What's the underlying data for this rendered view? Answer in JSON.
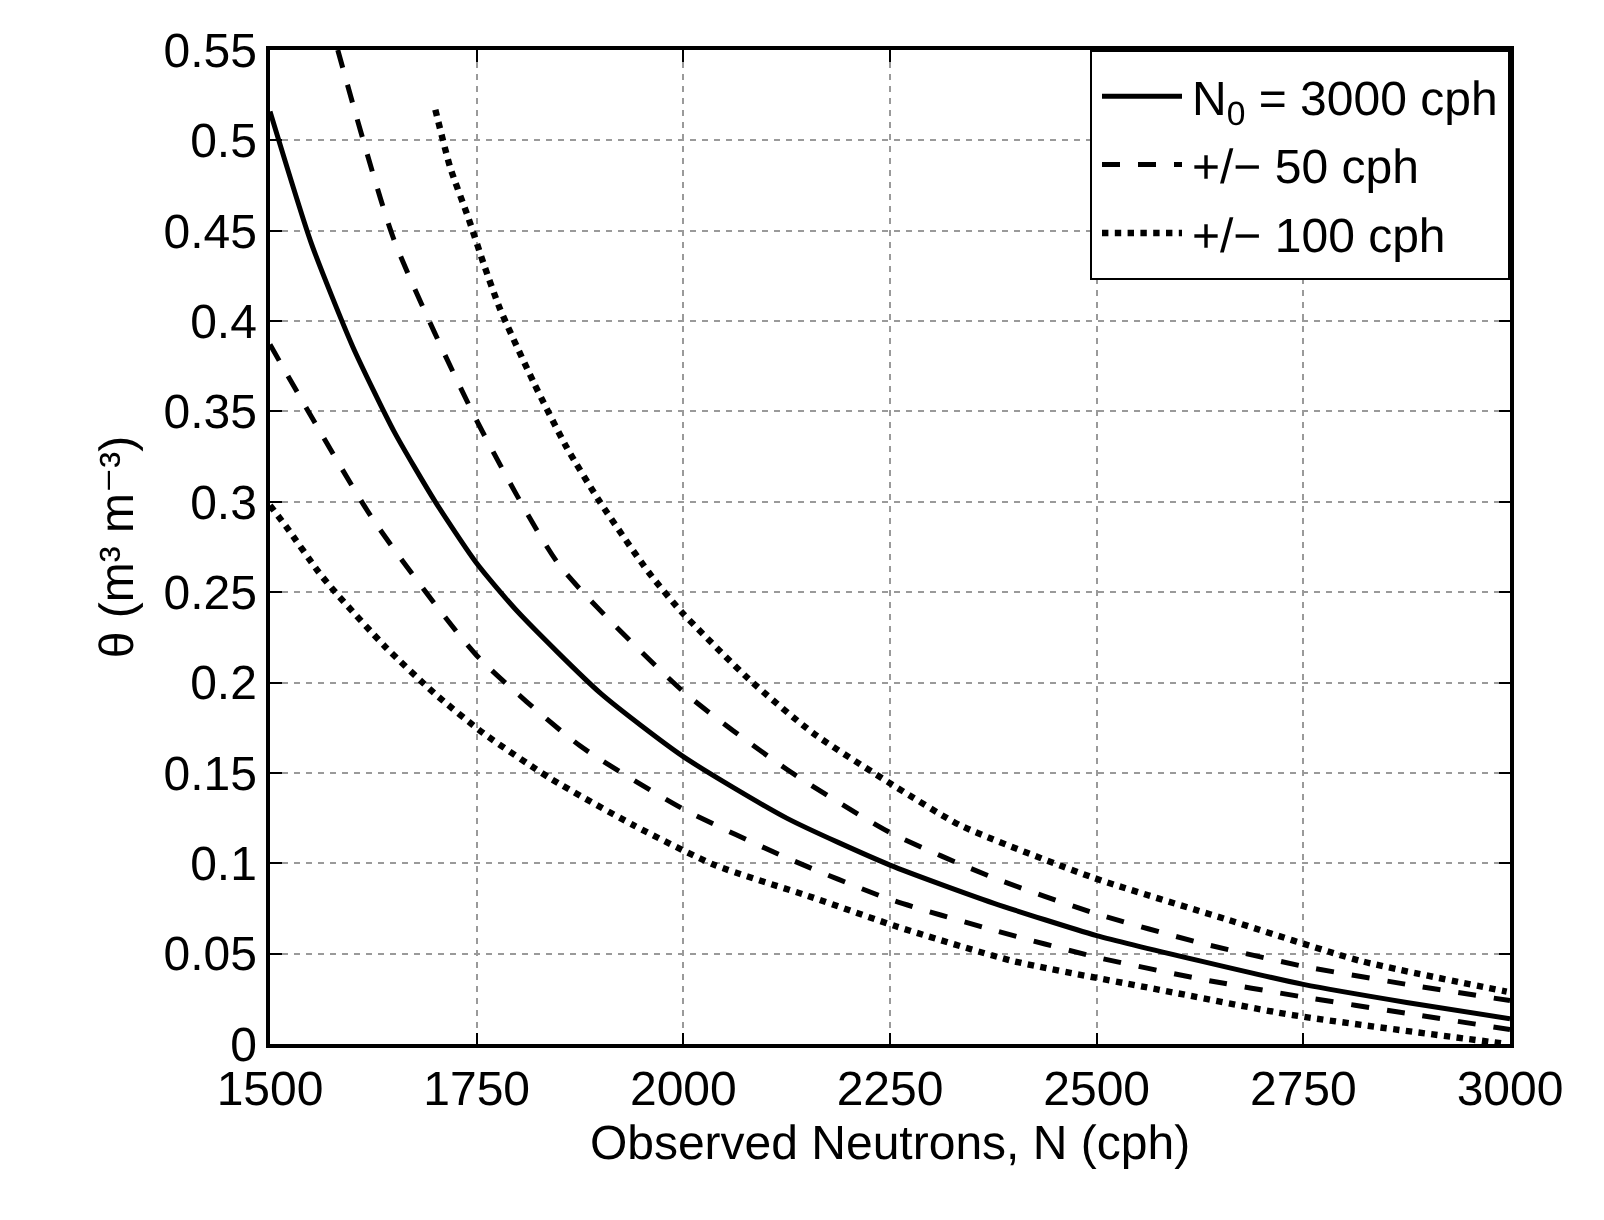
{
  "chart_data": {
    "type": "line",
    "xlabel": "Observed Neutrons, N (cph)",
    "ylabel": "θ (m³ m⁻³)",
    "xlim": [
      1500,
      3000
    ],
    "xticks": [
      1500,
      1750,
      2000,
      2250,
      2500,
      2750,
      3000
    ],
    "ylim": [
      0,
      0.55
    ],
    "yticks": [
      {
        "value": 0,
        "label": "0"
      },
      0.05,
      {
        "value": 0.1,
        "label": "0.1"
      },
      0.15,
      {
        "value": 0.2,
        "label": "0.2"
      },
      0.25,
      {
        "value": 0.3,
        "label": "0.3"
      },
      0.35,
      {
        "value": 0.4,
        "label": "0.4"
      },
      0.45,
      {
        "value": 0.5,
        "label": "0.5"
      },
      0.55
    ],
    "grid": true,
    "legend": "top right",
    "marker": "none",
    "series": [
      {
        "name": "N$_{0}$ = 3000 cph",
        "color": "#000000",
        "line_style": "solid",
        "x": [
          1500,
          1550,
          1600,
          1650,
          1700,
          1750,
          1800,
          1900,
          2000,
          2125,
          2250,
          2375,
          2500,
          2625,
          2750,
          2875,
          3000
        ],
        "values": [
          0.516,
          0.443,
          0.386,
          0.339,
          0.3,
          0.266,
          0.239,
          0.194,
          0.159,
          0.125,
          0.099,
          0.078,
          0.06,
          0.046,
          0.033,
          0.023,
          0.014
        ]
      },
      {
        "name": "+/− 50 cph",
        "color": "#000000",
        "line_style": "dashed",
        "x": [
          1582,
          1650,
          1750,
          1850,
          2000,
          2125,
          2250,
          2375,
          2500,
          2625,
          2750,
          2875,
          3000
        ],
        "values": [
          0.55,
          0.445,
          0.345,
          0.265,
          0.195,
          0.152,
          0.117,
          0.092,
          0.072,
          0.056,
          0.043,
          0.033,
          0.024
        ]
      },
      {
        "color": "#000000",
        "line_style": "dashed",
        "x": [
          1500,
          1625,
          1750,
          1875,
          2000,
          2125,
          2250,
          2375,
          2500,
          2625,
          2750,
          2875,
          3000
        ],
        "values": [
          0.387,
          0.29,
          0.215,
          0.165,
          0.13,
          0.103,
          0.08,
          0.063,
          0.048,
          0.036,
          0.026,
          0.017,
          0.008
        ]
      },
      {
        "name": "+/− 100 cph",
        "color": "#000000",
        "line_style": "dotted",
        "x": [
          1700,
          1718,
          1740,
          1759,
          1778,
          1819,
          1859,
          1899,
          1958,
          1998,
          2079,
          2157,
          2258,
          2335,
          2496,
          2657,
          2819,
          2996
        ],
        "values": [
          0.517,
          0.485,
          0.457,
          0.431,
          0.407,
          0.366,
          0.33,
          0.3,
          0.261,
          0.239,
          0.202,
          0.172,
          0.142,
          0.121,
          0.092,
          0.069,
          0.046,
          0.029
        ]
      },
      {
        "color": "#000000",
        "line_style": "dotted",
        "x": [
          1500,
          1520,
          1559,
          1579,
          1639,
          1699,
          1758,
          1839,
          1940,
          2038,
          2157,
          2258,
          2398,
          2576,
          2737,
          2996
        ],
        "values": [
          0.298,
          0.286,
          0.261,
          0.25,
          0.22,
          0.194,
          0.172,
          0.147,
          0.121,
          0.099,
          0.081,
          0.065,
          0.046,
          0.03,
          0.016,
          0.0
        ]
      }
    ]
  }
}
